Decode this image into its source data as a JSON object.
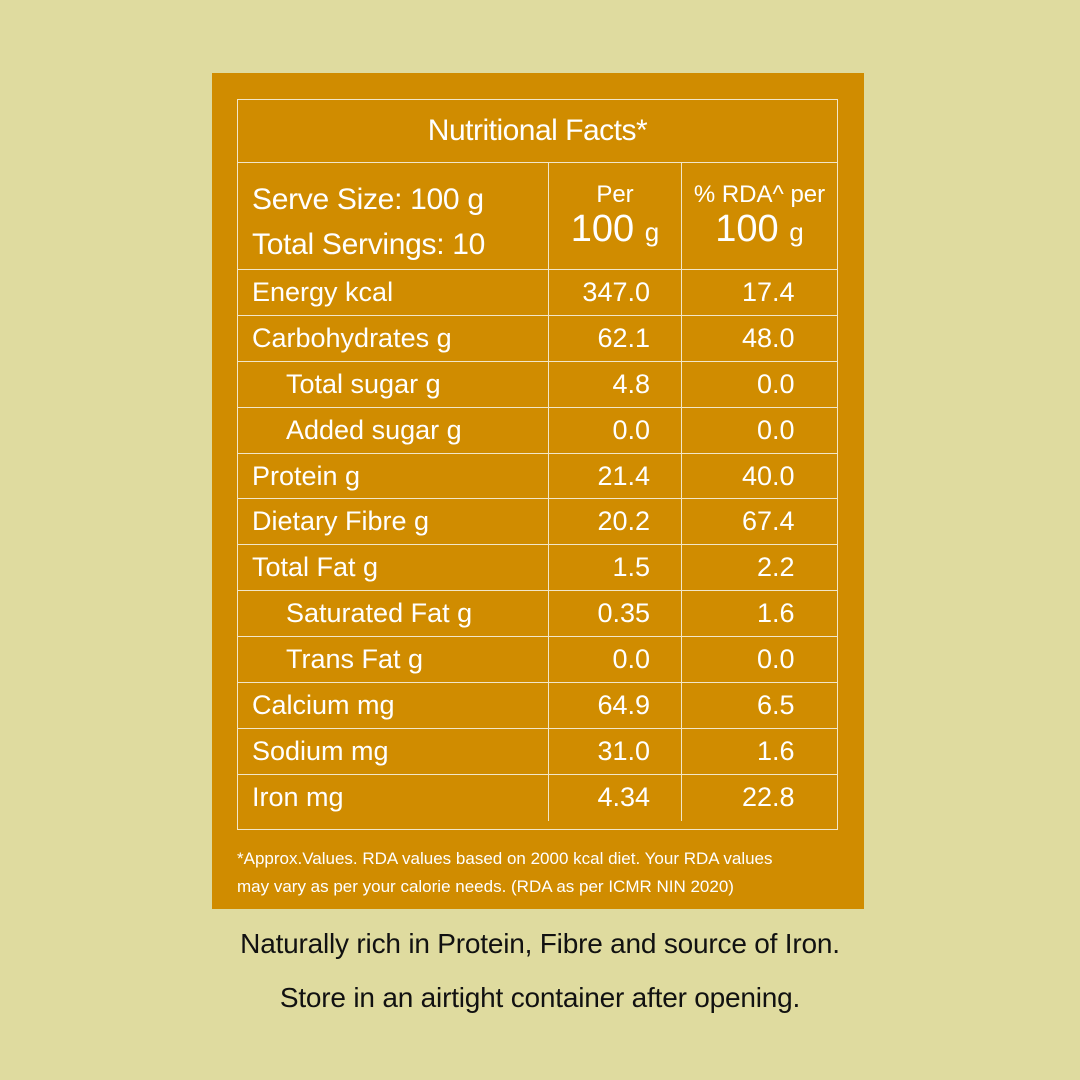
{
  "label": {
    "title": "Nutritional Facts*",
    "serve_size": "Serve Size: 100 g",
    "total_servings": "Total Servings: 10",
    "col_per_small": "Per",
    "col_per_big": "100",
    "col_per_unit": "g",
    "col_rda_small": "% RDA^ per",
    "col_rda_big": "100",
    "col_rda_unit": "g",
    "rows": [
      {
        "name": "Energy kcal",
        "per": "347.0",
        "rda": "17.4"
      },
      {
        "name": "Carbohydrates g",
        "per": "62.1",
        "rda": "48.0"
      },
      {
        "name": "Total sugar g",
        "per": "4.8",
        "rda": "0.0"
      },
      {
        "name": "Added sugar g",
        "per": "0.0",
        "rda": "0.0"
      },
      {
        "name": "Protein g",
        "per": "21.4",
        "rda": "40.0"
      },
      {
        "name": "Dietary Fibre g",
        "per": "20.2",
        "rda": "67.4"
      },
      {
        "name": "Total Fat g",
        "per": "1.5",
        "rda": "2.2"
      },
      {
        "name": "Saturated Fat g",
        "per": "0.35",
        "rda": "1.6"
      },
      {
        "name": "Trans Fat g",
        "per": "0.0",
        "rda": "0.0"
      },
      {
        "name": "Calcium mg",
        "per": "64.9",
        "rda": "6.5"
      },
      {
        "name": "Sodium mg",
        "per": "31.0",
        "rda": "1.6"
      },
      {
        "name": "Iron mg",
        "per": "4.34",
        "rda": "22.8"
      }
    ],
    "footnote_line1": "*Approx.Values. RDA values based on 2000 kcal diet. Your RDA values",
    "footnote_line2": "may vary as per your calorie needs. (RDA as per ICMR NIN 2020)"
  },
  "footer": {
    "line1": "Naturally rich in Protein, Fibre and source of Iron.",
    "line2": "Store in an airtight container after opening."
  },
  "colors": {
    "background": "#dfdb9f",
    "panel": "#d08c00",
    "text_light": "#ffffff",
    "text_dark": "#111111"
  }
}
